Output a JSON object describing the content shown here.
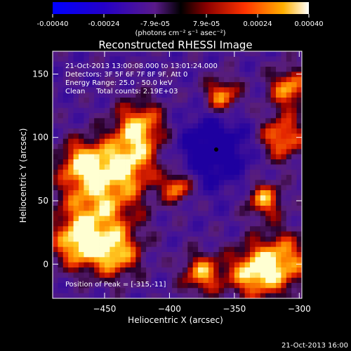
{
  "chart_data": {
    "type": "heatmap",
    "title": "Reconstructed RHESSI Image",
    "xlabel": "Heliocentric X (arcsec)",
    "ylabel": "Heliocentric Y (arcsec)",
    "xlim": [
      -490,
      -298
    ],
    "ylim": [
      -27,
      168
    ],
    "x_ticks": [
      -450,
      -400,
      -350,
      -300
    ],
    "y_ticks": [
      0,
      50,
      100,
      150
    ],
    "colorbar": {
      "range": [
        -0.0004,
        0.0004
      ],
      "ticks": [
        "-0.00040",
        "-0.00024",
        "-7.9e-05",
        "7.9e-05",
        "0.00024",
        "0.00040"
      ],
      "units_label": "(photons cm⁻² s⁻¹ asec⁻²)"
    },
    "annotations": [
      "21-Oct-2013 13:00:08.000 to 13:01:24.000",
      "Detectors: 3F 5F 6F 7F 8F 9F, Att 0",
      "Energy Range: 25.0 - 50.0 keV",
      "Clean     Total counts: 2.19E+03"
    ],
    "peak_label": "Position of Peak = [-315,-11]",
    "timestamp": "21-Oct-2013 16:00",
    "colors": {
      "background": "#000000",
      "text": "#ffffff"
    }
  }
}
